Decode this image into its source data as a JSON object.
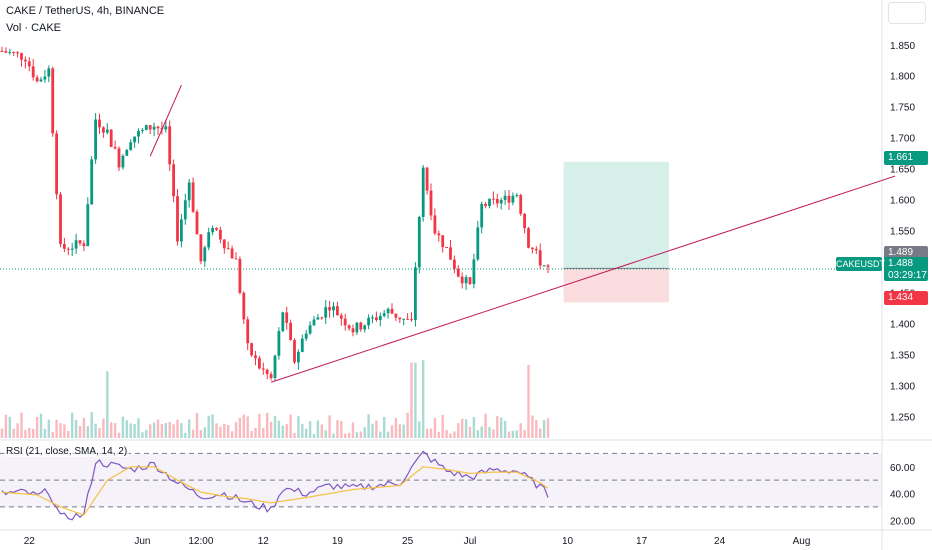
{
  "header": {
    "title": "CAKE / TetherUS, 4h, BINANCE",
    "volume_label": "Vol · CAKE"
  },
  "price_labels": {
    "take_profit": "1.661",
    "entry": "1.489",
    "last": "1.488",
    "countdown": "03:29:17",
    "stop_loss": "1.434",
    "symbol": "CAKEUSDT"
  },
  "colors": {
    "up": "#089981",
    "down": "#f23645",
    "rsi_line": "#7e57c2",
    "rsi_ma": "#f5c242",
    "trendline": "#c2185b",
    "profit_zone": "#d7efe9",
    "loss_zone": "#fbdde0"
  },
  "chart_data": [
    {
      "type": "candlestick",
      "title": "CAKE / TetherUS, 4h, BINANCE",
      "y_axis_ticks": [
        1.25,
        1.3,
        1.35,
        1.4,
        1.45,
        1.5,
        1.55,
        1.6,
        1.65,
        1.7,
        1.75,
        1.8,
        1.85
      ],
      "y_axis_tick_labels": [
        "1.250",
        "1.300",
        "1.350",
        "1.400",
        "1.450",
        "1.500",
        "1.550",
        "1.600",
        "1.650",
        "1.700",
        "1.750",
        "1.800",
        "1.850"
      ],
      "ylim": [
        1.215,
        1.89
      ],
      "x_axis_tick_labels": [
        "22",
        "Jun",
        "12:00",
        "12",
        "19",
        "25",
        "Jul",
        "10",
        "17",
        "24",
        "Aug"
      ],
      "close_path": [
        [
          0,
          1.84
        ],
        [
          6,
          1.83
        ],
        [
          9,
          1.79
        ],
        [
          12,
          1.81
        ],
        [
          15,
          1.52
        ],
        [
          21,
          1.53
        ],
        [
          24,
          1.73
        ],
        [
          27,
          1.71
        ],
        [
          30,
          1.66
        ],
        [
          33,
          1.7
        ],
        [
          39,
          1.72
        ],
        [
          42,
          1.71
        ],
        [
          45,
          1.54
        ],
        [
          48,
          1.63
        ],
        [
          51,
          1.5
        ],
        [
          54,
          1.56
        ],
        [
          57,
          1.53
        ],
        [
          60,
          1.5
        ],
        [
          63,
          1.36
        ],
        [
          66,
          1.33
        ],
        [
          69,
          1.31
        ],
        [
          72,
          1.42
        ],
        [
          75,
          1.34
        ],
        [
          78,
          1.39
        ],
        [
          84,
          1.43
        ],
        [
          90,
          1.39
        ],
        [
          96,
          1.41
        ],
        [
          99,
          1.42
        ],
        [
          102,
          1.41
        ],
        [
          105,
          1.4
        ],
        [
          108,
          1.65
        ],
        [
          111,
          1.55
        ],
        [
          114,
          1.52
        ],
        [
          117,
          1.48
        ],
        [
          120,
          1.46
        ],
        [
          123,
          1.59
        ],
        [
          129,
          1.6
        ],
        [
          132,
          1.61
        ],
        [
          135,
          1.53
        ],
        [
          138,
          1.5
        ],
        [
          140,
          1.488
        ]
      ],
      "volume": "per-candle volume bars along the bottom of the price pane",
      "volume_spikes_at": [
        27,
        105,
        106,
        108,
        135
      ],
      "trendline": {
        "from": [
          69,
          1.305
        ],
        "to": [
          229,
          1.638
        ]
      },
      "position": {
        "type": "long",
        "entry": 1.489,
        "take_profit": 1.661,
        "stop_loss": 1.434,
        "start_index": 144,
        "end_index": 171
      },
      "last_price": 1.488,
      "symbol": "CAKEUSDT"
    },
    {
      "type": "line",
      "title": "RSI (21, close, SMA, 14, 2)",
      "y_axis_ticks": [
        20,
        40,
        60
      ],
      "y_axis_tick_labels": [
        "20.00",
        "40.00",
        "60.00"
      ],
      "ylim": [
        15,
        80
      ],
      "bands": [
        30,
        50,
        70
      ],
      "rsi_path": [
        [
          0,
          40
        ],
        [
          6,
          41
        ],
        [
          9,
          38
        ],
        [
          12,
          42
        ],
        [
          15,
          22
        ],
        [
          21,
          24
        ],
        [
          24,
          64
        ],
        [
          27,
          62
        ],
        [
          33,
          58
        ],
        [
          39,
          62
        ],
        [
          45,
          48
        ],
        [
          51,
          38
        ],
        [
          57,
          40
        ],
        [
          63,
          33
        ],
        [
          69,
          28
        ],
        [
          72,
          44
        ],
        [
          78,
          40
        ],
        [
          84,
          46
        ],
        [
          90,
          44
        ],
        [
          96,
          46
        ],
        [
          102,
          48
        ],
        [
          108,
          70
        ],
        [
          114,
          57
        ],
        [
          120,
          52
        ],
        [
          126,
          58
        ],
        [
          132,
          57
        ],
        [
          138,
          45
        ],
        [
          140,
          39
        ]
      ],
      "rsi_ma_path": [
        [
          0,
          41
        ],
        [
          9,
          39
        ],
        [
          15,
          30
        ],
        [
          21,
          24
        ],
        [
          27,
          50
        ],
        [
          33,
          60
        ],
        [
          39,
          60
        ],
        [
          45,
          50
        ],
        [
          51,
          41
        ],
        [
          57,
          38
        ],
        [
          63,
          36
        ],
        [
          69,
          33
        ],
        [
          78,
          37
        ],
        [
          90,
          43
        ],
        [
          102,
          46
        ],
        [
          108,
          60
        ],
        [
          114,
          58
        ],
        [
          120,
          55
        ],
        [
          126,
          56
        ],
        [
          132,
          56
        ],
        [
          138,
          48
        ],
        [
          140,
          44
        ]
      ]
    }
  ],
  "rsi_label": "RSI (21, close, SMA, 14, 2)"
}
